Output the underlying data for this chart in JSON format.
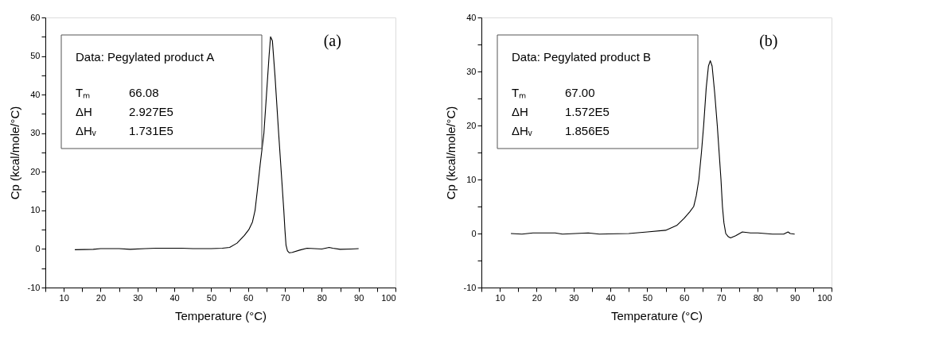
{
  "chart_data": [
    {
      "type": "line",
      "xlabel": "Temperature (°C)",
      "ylabel": "Cp (kcal/mole/°C)",
      "annotations": [
        "(a)",
        "Data: Pegylated product A",
        "Tₘ",
        "66.08",
        "ΔH",
        "2.927E5",
        "ΔHᵥ",
        "1.731E5"
      ],
      "x": [
        13,
        18,
        20,
        25,
        28,
        32,
        35,
        42,
        45,
        50,
        53,
        55,
        57,
        59,
        60.2,
        61.2,
        61.9,
        62.5,
        63.3,
        64.3,
        65,
        65.7,
        66.1,
        66.6,
        67.3,
        68.3,
        69,
        69.7,
        70,
        70.3,
        70.7,
        71.2,
        72,
        74,
        76,
        78,
        80,
        82,
        83,
        85,
        88,
        90
      ],
      "series": [
        {
          "color": "#000000",
          "values": [
            -0.2,
            -0.1,
            0.1,
            0.1,
            -0.1,
            0.1,
            0.2,
            0.2,
            0.1,
            0.1,
            0.2,
            0.4,
            1.5,
            3.5,
            5,
            7,
            10,
            15,
            22,
            30,
            40,
            50,
            55,
            54,
            45,
            30,
            20,
            10,
            5,
            1,
            -0.5,
            -1,
            -0.9,
            -0.3,
            0.2,
            0.1,
            0,
            0.4,
            0.2,
            -0.1,
            0,
            0.1
          ]
        }
      ],
      "xlim": [
        5,
        100
      ],
      "ylim": [
        -10,
        60
      ],
      "xticks": [
        {
          "value": 5,
          "label": null
        },
        10,
        {
          "value": 15,
          "label": null
        },
        20,
        {
          "value": 25,
          "label": null
        },
        30,
        {
          "value": 35,
          "label": null
        },
        40,
        {
          "value": 45,
          "label": null
        },
        50,
        {
          "value": 55,
          "label": null
        },
        60,
        {
          "value": 65,
          "label": null
        },
        70,
        {
          "value": 75,
          "label": null
        },
        80,
        {
          "value": 85,
          "label": null
        },
        90,
        {
          "value": 95,
          "label": null
        },
        100
      ],
      "yticks": [
        -10,
        {
          "value": -5,
          "label": null
        },
        0,
        {
          "value": 5,
          "label": null
        },
        10,
        {
          "value": 15,
          "label": null
        },
        20,
        {
          "value": 25,
          "label": null
        },
        30,
        {
          "value": 35,
          "label": null
        },
        40,
        {
          "value": 45,
          "label": null
        },
        50,
        {
          "value": 55,
          "label": null
        },
        60
      ],
      "grid": false,
      "marker": "none",
      "line_style": "solid"
    },
    {
      "type": "line",
      "xlabel": "Temperature (°C)",
      "ylabel": "Cp (kcal/mole/°C)",
      "annotations": [
        "(b)",
        "Data: Pegylated product B",
        "Tₘ",
        "67.00",
        "ΔH",
        "1.572E5",
        "ΔHᵥ",
        "1.856E5"
      ],
      "x": [
        13,
        16,
        19,
        25,
        27,
        34,
        37,
        45,
        50,
        55,
        58,
        60,
        61.5,
        62.6,
        63.3,
        64,
        64.7,
        65.3,
        66,
        66.6,
        67.1,
        67.6,
        68.3,
        69,
        69.5,
        70,
        70.4,
        70.8,
        71.3,
        72,
        72.6,
        74,
        75.8,
        78,
        80,
        84,
        87,
        88.2,
        88.8,
        90
      ],
      "series": [
        {
          "color": "#000000",
          "values": [
            0,
            -0.1,
            0.1,
            0.1,
            -0.1,
            0.1,
            -0.1,
            0,
            0.3,
            0.6,
            1.5,
            2.8,
            4,
            5,
            7,
            10,
            15,
            20,
            27,
            31,
            32,
            31,
            26,
            20,
            15,
            10,
            5,
            2,
            0,
            -0.6,
            -0.8,
            -0.4,
            0.3,
            0.1,
            0.1,
            -0.1,
            -0.1,
            0.3,
            0,
            -0.1
          ]
        }
      ],
      "xlim": [
        5,
        100
      ],
      "ylim": [
        -10,
        40
      ],
      "xticks": [
        {
          "value": 5,
          "label": null
        },
        10,
        {
          "value": 15,
          "label": null
        },
        20,
        {
          "value": 25,
          "label": null
        },
        30,
        {
          "value": 35,
          "label": null
        },
        40,
        {
          "value": 45,
          "label": null
        },
        50,
        {
          "value": 55,
          "label": null
        },
        60,
        {
          "value": 65,
          "label": null
        },
        70,
        {
          "value": 75,
          "label": null
        },
        80,
        {
          "value": 85,
          "label": null
        },
        90,
        {
          "value": 95,
          "label": null
        },
        100
      ],
      "yticks": [
        -10,
        {
          "value": -5,
          "label": null
        },
        0,
        {
          "value": 5,
          "label": null
        },
        10,
        {
          "value": 15,
          "label": null
        },
        20,
        {
          "value": 25,
          "label": null
        },
        30,
        {
          "value": 35,
          "label": null
        },
        40
      ],
      "grid": false,
      "marker": "none",
      "line_style": "solid"
    }
  ]
}
